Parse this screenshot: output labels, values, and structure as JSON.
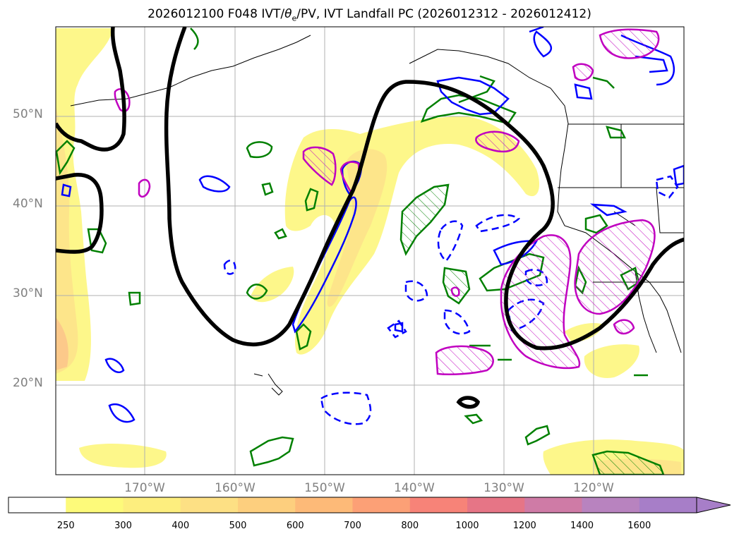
{
  "title": {
    "prefix": "2026012100 F048 IVT/",
    "theta": "θ",
    "theta_sub": "e",
    "suffix": "/PV, IVT Landfall PC (2026012312 - 2026012412)"
  },
  "map": {
    "projection": "cylindrical",
    "lon_range": [
      -180,
      -110
    ],
    "lat_range": [
      10,
      60
    ],
    "gridlines": true,
    "lat_labels": [
      "20°N",
      "30°N",
      "40°N",
      "50°N"
    ],
    "lon_labels": [
      "170°W",
      "160°W",
      "150°W",
      "140°W",
      "130°W",
      "120°W"
    ]
  },
  "colorbar": {
    "levels": [
      "250",
      "300",
      "400",
      "500",
      "600",
      "700",
      "800",
      "1000",
      "1200",
      "1400",
      "1600"
    ],
    "colors": [
      "#ffffff",
      "#fdfa7a",
      "#fdee7e",
      "#fde084",
      "#fdcf7e",
      "#fdba78",
      "#fca076",
      "#f78378",
      "#e67586",
      "#cf7ba6",
      "#b883bf",
      "#a77ec8"
    ],
    "extend": "max"
  },
  "legend_colors": {
    "ivt_contour": "#000000",
    "pv_positive": "#008000",
    "pv_negative": "#0000ff",
    "theta_anomaly": "#c000c0"
  }
}
